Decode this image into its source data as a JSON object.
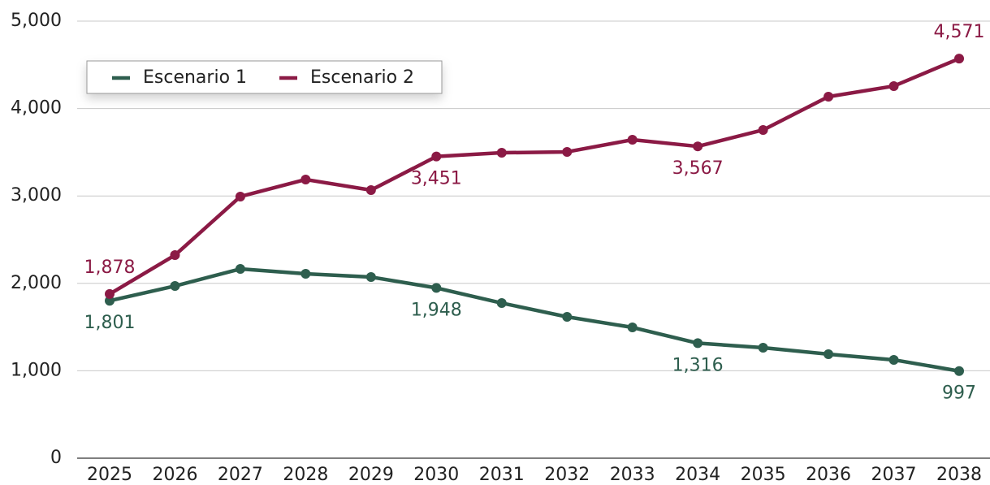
{
  "chart_data": {
    "type": "line",
    "categories": [
      "2025",
      "2026",
      "2027",
      "2028",
      "2029",
      "2030",
      "2031",
      "2032",
      "2033",
      "2034",
      "2035",
      "2036",
      "2037",
      "2038"
    ],
    "series": [
      {
        "name": "Escenario 1",
        "color": "#2e5e4e",
        "values": [
          1801,
          1970,
          2165,
          2110,
          2072,
          1948,
          1775,
          1617,
          1496,
          1316,
          1264,
          1190,
          1125,
          997
        ],
        "value_labels": [
          "1,801",
          null,
          null,
          null,
          null,
          "1,948",
          null,
          null,
          null,
          "1,316",
          null,
          null,
          null,
          "997"
        ]
      },
      {
        "name": "Escenario 2",
        "color": "#8b1a45",
        "values": [
          1878,
          2323,
          2993,
          3188,
          3067,
          3451,
          3494,
          3504,
          3643,
          3567,
          3755,
          4136,
          4257,
          4571
        ],
        "value_labels": [
          "1,878",
          null,
          null,
          null,
          null,
          "3,451",
          null,
          null,
          null,
          "3,567",
          null,
          null,
          null,
          "4,571"
        ]
      }
    ],
    "ylim": [
      0,
      5000
    ],
    "yticks": [
      0,
      {
        "value": 1000,
        "label": "1,000"
      },
      {
        "value": 2000,
        "label": "2,000"
      },
      {
        "value": 3000,
        "label": "3,000"
      },
      {
        "value": 4000,
        "label": "4,000"
      },
      {
        "value": 5000,
        "label": "5,000"
      }
    ],
    "grid": true,
    "legend": "upper left"
  }
}
